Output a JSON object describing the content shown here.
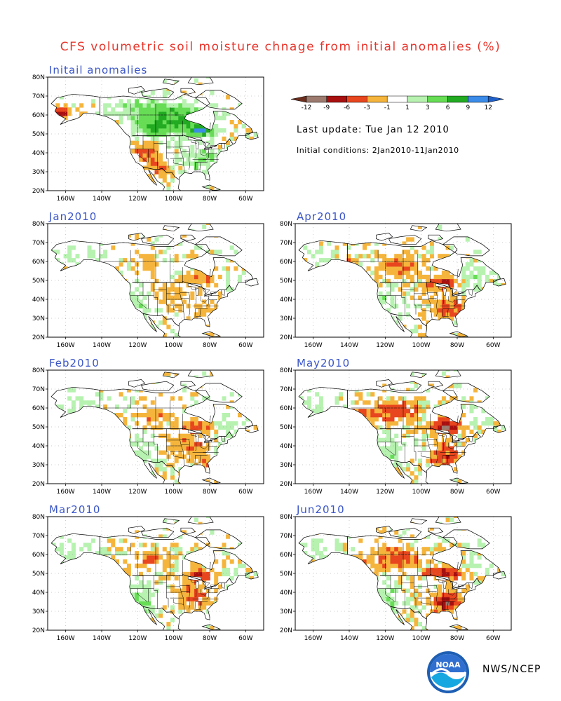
{
  "title": "CFS volumetric soil moisture chnage from initial anomalies (%)",
  "colors": {
    "title": "#e8342a",
    "panel_title": "#3a55c8",
    "land": "#ffffff",
    "border": "#000000",
    "grid": "#9a9a9a"
  },
  "legend": {
    "levels": [
      "-12",
      "-9",
      "-6",
      "-3",
      "-1",
      "1",
      "3",
      "6",
      "9",
      "12"
    ],
    "colors": [
      "#6b2e1e",
      "#9c7a6e",
      "#a80f0f",
      "#e8461e",
      "#f5b53c",
      "#ffffff",
      "#b7f2b0",
      "#66dd55",
      "#22aa22",
      "#3b8be8",
      "#1f5fc8"
    ]
  },
  "last_update": "Last update: Tue Jan 12 2010",
  "initial_conditions": "Initial conditions: 2Jan2010-11Jan2010",
  "axes": {
    "lat_labels": [
      "80N",
      "70N",
      "60N",
      "50N",
      "40N",
      "30N",
      "20N"
    ],
    "lon_labels": [
      "160W",
      "140W",
      "120W",
      "100W",
      "80W",
      "60W"
    ]
  },
  "panels": [
    {
      "id": "initial",
      "title": "Initail anomalies"
    },
    {
      "id": "jan",
      "title": "Jan2010"
    },
    {
      "id": "apr",
      "title": "Apr2010"
    },
    {
      "id": "feb",
      "title": "Feb2010"
    },
    {
      "id": "may",
      "title": "May2010"
    },
    {
      "id": "mar",
      "title": "Mar2010"
    },
    {
      "id": "jun",
      "title": "Jun2010"
    }
  ],
  "logo": {
    "text": "NOAA",
    "icon": "noaa-logo-icon"
  },
  "agency": "NWS/NCEP"
}
